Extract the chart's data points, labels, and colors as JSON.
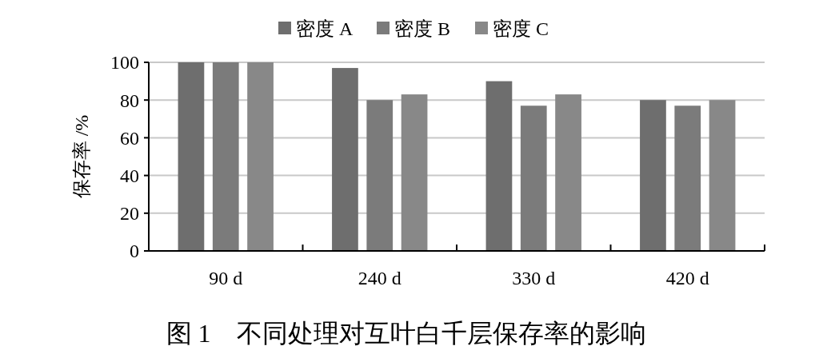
{
  "chart_data": {
    "type": "bar",
    "title": "图 1　不同处理对互叶白千层保存率的影响",
    "ylabel": "保存率 /%",
    "categories": [
      "90 d",
      "240 d",
      "330 d",
      "420 d"
    ],
    "series": [
      {
        "name": "密度 A",
        "color": "#6e6e6e",
        "values": [
          100,
          97,
          90,
          80
        ]
      },
      {
        "name": "密度 B",
        "color": "#7b7b7b",
        "values": [
          100,
          80,
          77,
          77
        ]
      },
      {
        "name": "密度 C",
        "color": "#888888",
        "values": [
          100,
          83,
          83,
          80
        ]
      }
    ],
    "ylim": [
      0,
      100
    ],
    "yticks": [
      0,
      20,
      40,
      60,
      80,
      100
    ],
    "grid": "y",
    "legend": "top"
  }
}
